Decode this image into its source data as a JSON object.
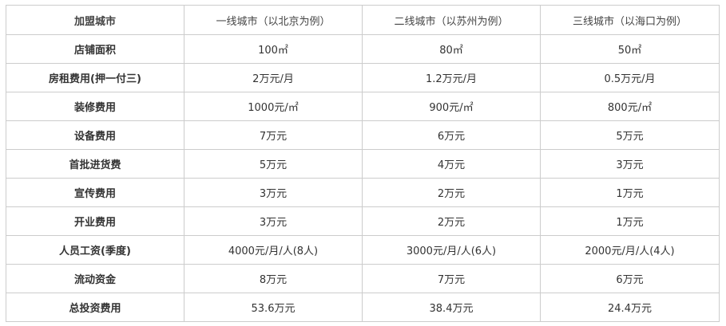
{
  "table": {
    "headers": [
      "加盟城市",
      "一线城市（以北京为例）",
      "二线城市（以苏州为例）",
      "三线城市（以海口为例）"
    ],
    "rows": [
      {
        "label": "店铺面积",
        "values": [
          "100㎡",
          "80㎡",
          "50㎡"
        ]
      },
      {
        "label": "房租费用(押一付三)",
        "values": [
          "2万元/月",
          "1.2万元/月",
          "0.5万元/月"
        ]
      },
      {
        "label": "装修费用",
        "values": [
          "1000元/㎡",
          "900元/㎡",
          "800元/㎡"
        ]
      },
      {
        "label": "设备费用",
        "values": [
          "7万元",
          "6万元",
          "5万元"
        ]
      },
      {
        "label": "首批进货费",
        "values": [
          "5万元",
          "4万元",
          "3万元"
        ]
      },
      {
        "label": "宣传费用",
        "values": [
          "3万元",
          "2万元",
          "1万元"
        ]
      },
      {
        "label": "开业费用",
        "values": [
          "3万元",
          "2万元",
          "1万元"
        ]
      },
      {
        "label": "人员工资(季度)",
        "values": [
          "4000元/月/人(8人)",
          "3000元/月/人(6人)",
          "2000元/月/人(4人)"
        ]
      },
      {
        "label": "流动资金",
        "values": [
          "8万元",
          "7万元",
          "6万元"
        ]
      },
      {
        "label": "总投资费用",
        "values": [
          "53.6万元",
          "38.4万元",
          "24.4万元"
        ]
      }
    ]
  }
}
